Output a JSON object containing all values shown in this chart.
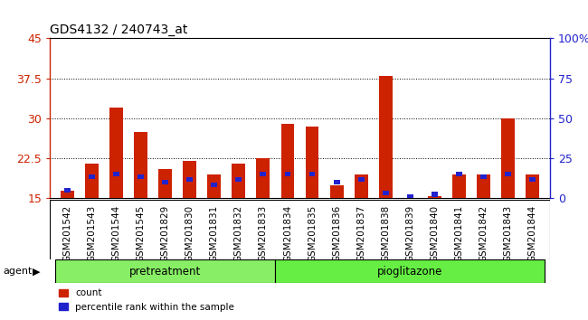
{
  "title": "GDS4132 / 240743_at",
  "categories": [
    "GSM201542",
    "GSM201543",
    "GSM201544",
    "GSM201545",
    "GSM201829",
    "GSM201830",
    "GSM201831",
    "GSM201832",
    "GSM201833",
    "GSM201834",
    "GSM201835",
    "GSM201836",
    "GSM201837",
    "GSM201838",
    "GSM201839",
    "GSM201840",
    "GSM201841",
    "GSM201842",
    "GSM201843",
    "GSM201844"
  ],
  "count_values": [
    16.5,
    21.5,
    32.0,
    27.5,
    20.5,
    22.0,
    19.5,
    21.5,
    22.5,
    29.0,
    28.5,
    17.5,
    19.5,
    38.0,
    15.0,
    15.5,
    19.5,
    19.5,
    30.0,
    19.5
  ],
  "percentile_top": [
    17.0,
    19.5,
    20.0,
    19.5,
    18.5,
    19.0,
    18.0,
    19.0,
    20.0,
    20.0,
    20.0,
    18.5,
    19.0,
    16.5,
    15.8,
    16.2,
    20.0,
    19.5,
    20.0,
    19.0
  ],
  "ylim_left": [
    15,
    45
  ],
  "ylim_right": [
    0,
    100
  ],
  "yticks_left": [
    15,
    22.5,
    30,
    37.5,
    45
  ],
  "yticks_right": [
    0,
    25,
    50,
    75,
    100
  ],
  "bar_color_red": "#cc2200",
  "bar_color_blue": "#2222cc",
  "group1_count": 9,
  "group2_count": 11,
  "group1_color": "#88ee66",
  "group2_color": "#66ee44",
  "group1_label": "pretreatment",
  "group2_label": "pioglitazone",
  "agent_label": "agent",
  "legend_count": "count",
  "legend_percentile": "percentile rank within the sample",
  "bar_width": 0.55,
  "blue_bar_width": 0.25,
  "blue_bar_height": 0.9,
  "plot_bg": "#ffffff",
  "tick_area_bg": "#d8d8d8",
  "title_fontsize": 10,
  "axis_fontsize": 9,
  "tick_fontsize": 7.5
}
